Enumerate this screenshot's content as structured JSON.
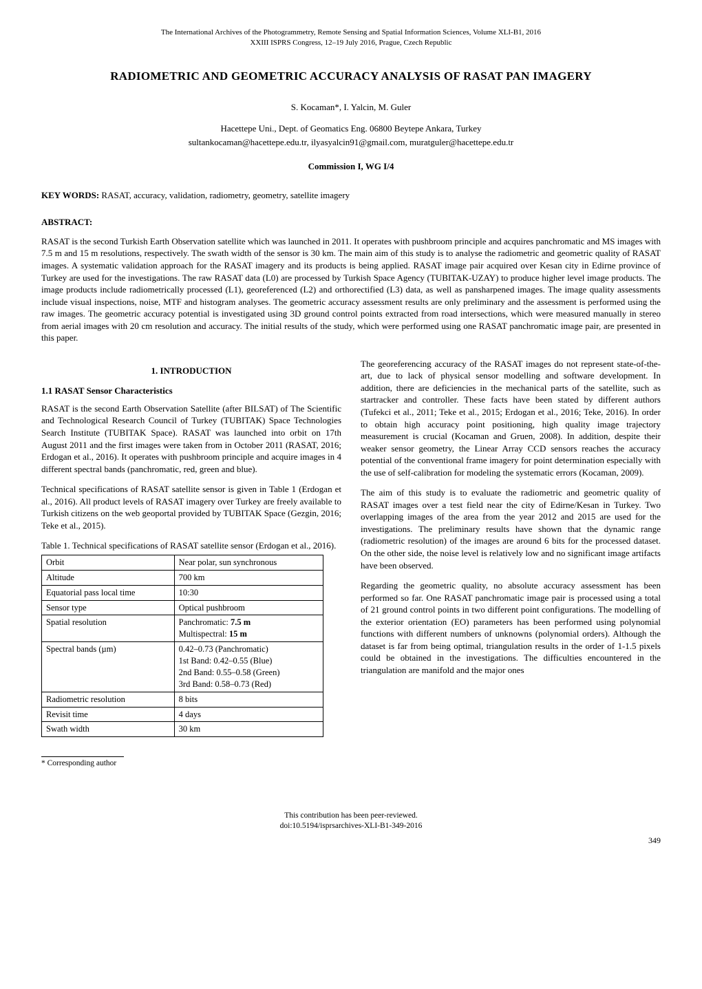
{
  "header": {
    "line1": "The International Archives of the Photogrammetry, Remote Sensing and Spatial Information Sciences, Volume XLI-B1, 2016",
    "line2": "XXIII ISPRS Congress, 12–19 July 2016, Prague, Czech Republic"
  },
  "title": "RADIOMETRIC AND GEOMETRIC ACCURACY ANALYSIS OF RASAT PAN IMAGERY",
  "authors": "S. Kocaman*, I. Yalcin, M. Guler",
  "affiliation_line1": "Hacettepe Uni., Dept. of Geomatics Eng. 06800 Beytepe Ankara, Turkey",
  "affiliation_line2": "sultankocaman@hacettepe.edu.tr, ilyasyalcin91@gmail.com, muratguler@hacettepe.edu.tr",
  "commission": "Commission I, WG I/4",
  "keywords_label": "KEY WORDS:",
  "keywords_text": " RASAT, accuracy, validation, radiometry, geometry, satellite imagery",
  "abstract_label": "ABSTRACT:",
  "abstract_text": "RASAT is the second Turkish Earth Observation satellite which was launched in 2011. It operates with pushbroom principle and acquires panchromatic and MS images with 7.5 m and 15 m resolutions, respectively. The swath width of the sensor is 30 km. The main aim of this study is to analyse the radiometric and geometric quality of RASAT images. A systematic validation approach for the RASAT imagery and its products is being applied. RASAT image pair acquired over Kesan city in Edirne province of Turkey are used for the investigations. The raw RASAT data (L0) are processed by Turkish Space Agency (TUBITAK-UZAY) to produce higher level image products. The image products include radiometrically processed (L1), georeferenced (L2) and orthorectified (L3) data, as well as pansharpened images. The image quality assessments include visual inspections, noise, MTF and histogram analyses. The geometric accuracy assessment results are only preliminary and the assessment is performed using the raw images. The geometric accuracy potential is investigated using 3D ground control points extracted from road intersections, which were measured manually in stereo from aerial images with 20 cm resolution and accuracy. The initial results of the study, which were performed using one RASAT panchromatic image pair, are presented in this paper.",
  "section1_heading": "1.   INTRODUCTION",
  "subsection11_heading": "1.1  RASAT Sensor Characteristics",
  "col_left": {
    "p1": "RASAT is the second Earth Observation Satellite (after BILSAT) of The Scientific and Technological Research Council of Turkey (TUBITAK) Space Technologies Search Institute (TUBITAK Space). RASAT was launched into orbit on 17th August 2011 and the first images were taken from in October 2011 (RASAT, 2016; Erdogan et al., 2016). It operates with pushbroom principle and acquire images in 4 different spectral bands (panchromatic, red, green and blue).",
    "p2": "Technical specifications of RASAT satellite sensor is given in Table 1 (Erdogan et al., 2016). All product levels of RASAT imagery over Turkey are freely available to Turkish citizens on the web geoportal provided by TUBITAK Space (Gezgin, 2016; Teke et al., 2015).",
    "table_caption": "Table 1. Technical specifications of RASAT satellite sensor (Erdogan et al., 2016)."
  },
  "table1": {
    "rows": [
      [
        "Orbit",
        "Near polar, sun synchronous"
      ],
      [
        "Altitude",
        "700 km"
      ],
      [
        "Equatorial pass local time",
        "10:30"
      ],
      [
        "Sensor type",
        "Optical pushbroom"
      ],
      [
        "Spatial resolution",
        "Panchromatic: 7.5 m\nMultispectral: 15 m"
      ],
      [
        "Spectral bands (µm)",
        "0.42–0.73 (Panchromatic)\n1st Band: 0.42–0.55 (Blue)\n2nd Band: 0.55–0.58 (Green)\n3rd Band: 0.58–0.73 (Red)"
      ],
      [
        "Radiometric resolution",
        "8 bits"
      ],
      [
        "Revisit time",
        "4 days"
      ],
      [
        "Swath width",
        "30 km"
      ]
    ],
    "bold_cells": {
      "4-1-parts": [
        "Panchromatic: ",
        "7.5 m",
        "Multispectral: ",
        "15 m"
      ]
    }
  },
  "col_right": {
    "p1": "The georeferencing accuracy of the RASAT images do not represent state-of-the-art, due to lack of physical sensor modelling and software development. In addition, there are deficiencies in the mechanical parts of the satellite, such as startracker and controller. These facts have been stated by different authors (Tufekci et al., 2011; Teke et al., 2015; Erdogan et al., 2016; Teke, 2016). In order to obtain high accuracy point positioning, high quality image trajectory measurement is crucial (Kocaman and Gruen, 2008). In addition, despite their weaker sensor geometry, the Linear Array CCD sensors reaches the accuracy potential of the conventional frame imagery for point determination especially with the use of self-calibration for modeling the systematic errors (Kocaman, 2009).",
    "p2": "The aim of this study is to evaluate the radiometric and geometric quality of RASAT images over a test field near the city of Edirne/Kesan in Turkey. Two overlapping images of the area from the year 2012 and 2015 are used for the investigations. The preliminary results have shown that the dynamic range (radiometric resolution) of the images are around 6 bits for the processed dataset. On the other side, the noise level is relatively low and no significant image artifacts have been observed.",
    "p3": "Regarding the geometric quality, no absolute accuracy assessment has been performed so far. One RASAT panchromatic image pair is processed using a total of 21 ground control points in two different point configurations. The modelling of the exterior orientation (EO) parameters has been performed using polynomial functions with different numbers of unknowns (polynomial orders). Although the dataset is far from being optimal, triangulation results in the order of 1-1.5 pixels could be obtained in the investigations. The difficulties encountered in the triangulation are manifold and the major ones"
  },
  "footnote": "*   Corresponding author",
  "footer": {
    "line1": "This contribution has been peer-reviewed.",
    "line2": "doi:10.5194/isprsarchives-XLI-B1-349-2016"
  },
  "page_number": "349"
}
